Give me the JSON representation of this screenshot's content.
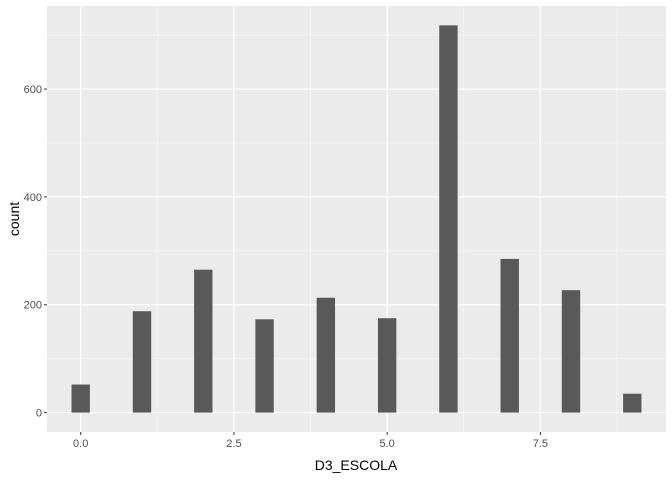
{
  "chart_data": {
    "type": "bar",
    "xlabel": "D3_ESCOLA",
    "ylabel": "count",
    "x": [
      0,
      1,
      2,
      3,
      4,
      5,
      6,
      7,
      8,
      9
    ],
    "values": [
      52,
      188,
      265,
      173,
      213,
      175,
      718,
      285,
      227,
      35
    ],
    "xlim": [
      -0.55,
      9.55
    ],
    "ylim": [
      -36,
      754
    ],
    "xticks": [
      0.0,
      2.5,
      5.0,
      7.5
    ],
    "xtick_labels": [
      "0.0",
      "2.5",
      "5.0",
      "7.5"
    ],
    "yticks": [
      0,
      200,
      400,
      600
    ],
    "ytick_labels": [
      "0",
      "200",
      "400",
      "600"
    ],
    "bin_width": 0.3,
    "grid": true,
    "legend": "none",
    "colors": {
      "panel": "#ebebeb",
      "grid_major": "#ffffff",
      "grid_minor": "#f5f5f5",
      "bar": "#595959",
      "tick": "#333333",
      "tick_text": "#4d4d4d"
    }
  }
}
